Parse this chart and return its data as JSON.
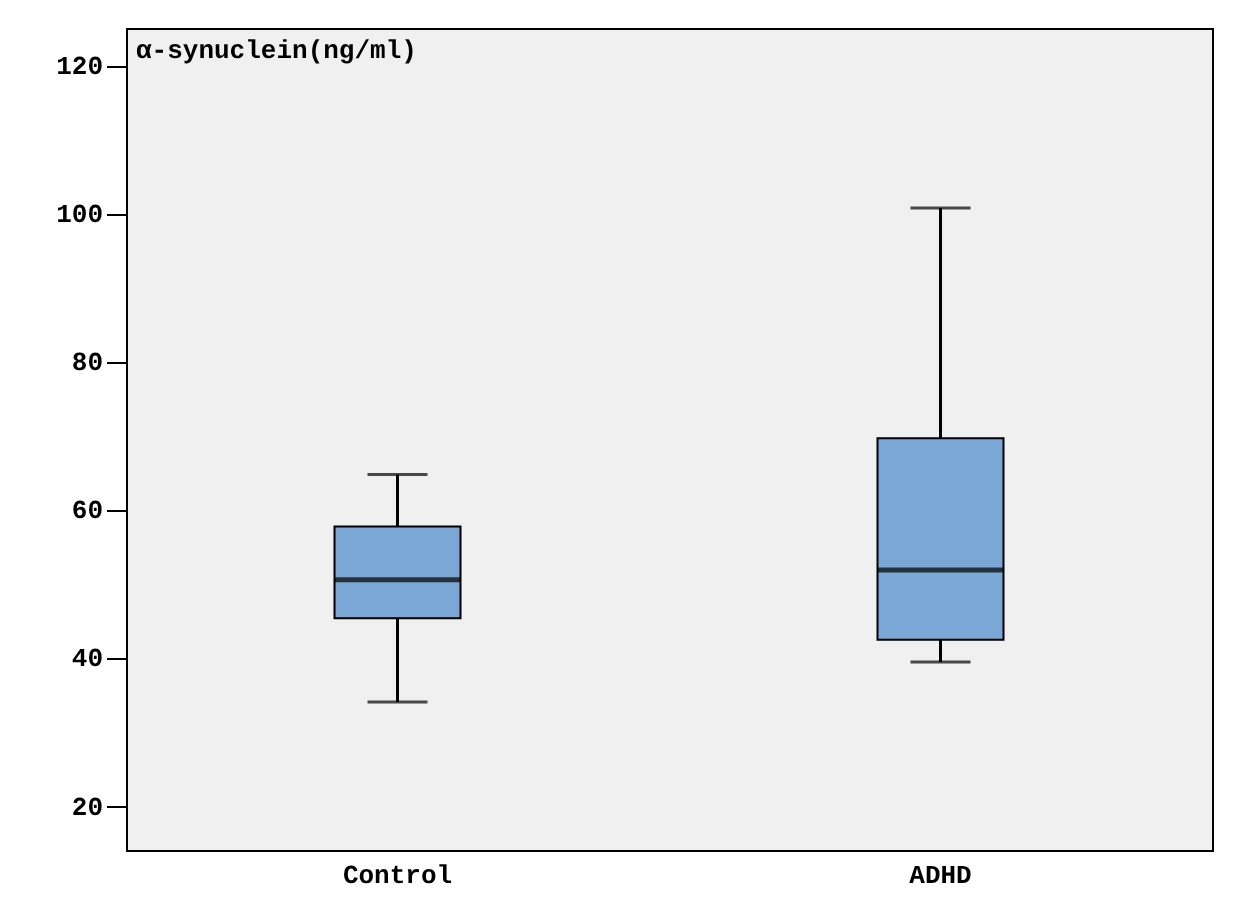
{
  "chart_data": {
    "type": "box",
    "ylabel": "α-synuclein(ng/ml)",
    "categories": [
      "Control",
      "ADHD"
    ],
    "boxes": [
      {
        "low": 34,
        "q1": 45.3,
        "median": 50.5,
        "q3": 57.7,
        "high": 64.7
      },
      {
        "low": 39.4,
        "q1": 42.4,
        "median": 51.8,
        "q3": 69.6,
        "high": 100.7
      }
    ],
    "color": "#7ba7d6",
    "ylim": [
      14,
      125
    ],
    "yticks": [
      20,
      40,
      60,
      80,
      100,
      120
    ],
    "grid": false
  }
}
